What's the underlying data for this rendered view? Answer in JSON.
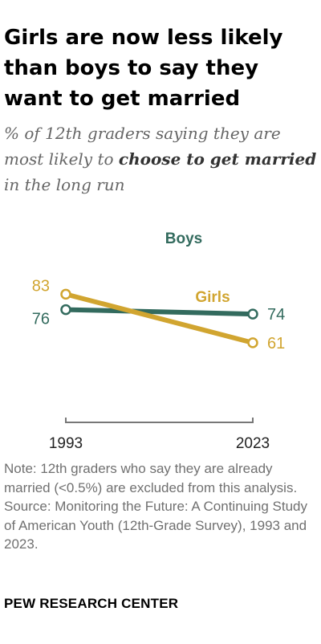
{
  "title": "Girls are now less likely than boys to say they want to get married",
  "subtitle": {
    "part1": "% of 12th graders saying they are most likely to ",
    "emphasis": "choose to get married",
    "part2": " in the long run"
  },
  "chart_data": {
    "type": "line",
    "x": [
      "1993",
      "2023"
    ],
    "series": [
      {
        "name": "Boys",
        "values": [
          76,
          74
        ],
        "color": "#336b5e"
      },
      {
        "name": "Girls",
        "values": [
          83,
          61
        ],
        "color": "#d1a530"
      }
    ],
    "ylim": [
      0,
      90
    ]
  },
  "note": "Note: 12th graders who say they are already married (<0.5%) are excluded from this analysis.",
  "source": "Source: Monitoring the Future: A Continuing Study of American Youth (12th-Grade Survey), 1993 and 2023.",
  "footer": "PEW RESEARCH CENTER"
}
